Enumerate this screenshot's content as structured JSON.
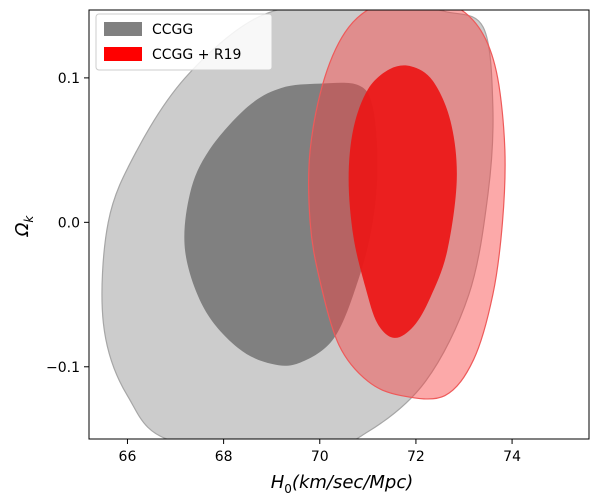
{
  "chart_data": {
    "type": "contour",
    "xlabel_parts": {
      "main": "H",
      "sub": "0",
      "rest": "(km/sec/Mpc)"
    },
    "ylabel_parts": {
      "main": "Ω",
      "sub": "k"
    },
    "xlim": [
      65.2,
      75.6
    ],
    "ylim": [
      -0.15,
      0.147
    ],
    "xticks": [
      66,
      68,
      70,
      72,
      74
    ],
    "xtick_labels": [
      "66",
      "68",
      "70",
      "72",
      "74"
    ],
    "yticks": [
      -0.1,
      0.0,
      0.1
    ],
    "ytick_labels": [
      "−0.1",
      "0.0",
      "0.1"
    ],
    "grid": false,
    "legend_position": "top-left",
    "series": [
      {
        "name": "CCGG",
        "color": "#808080",
        "regions": [
          {
            "level": "outer",
            "color": "#cccccc",
            "points": [
              [
                72.6,
                0.146
              ],
              [
                73.4,
                0.135
              ],
              [
                73.6,
                0.08
              ],
              [
                73.5,
                0.02
              ],
              [
                73.1,
                -0.05
              ],
              [
                72.2,
                -0.11
              ],
              [
                71.0,
                -0.145
              ],
              [
                70.0,
                -0.155
              ],
              [
                67.0,
                -0.152
              ],
              [
                66.0,
                -0.12
              ],
              [
                65.5,
                -0.07
              ],
              [
                65.6,
                0.0
              ],
              [
                66.2,
                0.05
              ],
              [
                67.2,
                0.1
              ],
              [
                68.6,
                0.14
              ],
              [
                70.0,
                0.152
              ],
              [
                71.5,
                0.152
              ]
            ]
          },
          {
            "level": "inner",
            "color": "#808080",
            "points": [
              [
                70.8,
                0.095
              ],
              [
                71.1,
                0.08
              ],
              [
                71.2,
                0.04
              ],
              [
                71.1,
                0.0
              ],
              [
                70.8,
                -0.04
              ],
              [
                70.3,
                -0.08
              ],
              [
                69.6,
                -0.097
              ],
              [
                69.0,
                -0.098
              ],
              [
                68.3,
                -0.087
              ],
              [
                67.6,
                -0.06
              ],
              [
                67.2,
                -0.02
              ],
              [
                67.3,
                0.02
              ],
              [
                67.7,
                0.05
              ],
              [
                68.5,
                0.08
              ],
              [
                69.2,
                0.093
              ],
              [
                70.0,
                0.096
              ]
            ]
          }
        ]
      },
      {
        "name": "CCGG + R19",
        "color": "#ff0000",
        "regions": [
          {
            "level": "outer",
            "color": "rgba(248,64,64,0.45)",
            "points": [
              [
                73.4,
                0.13
              ],
              [
                73.7,
                0.1
              ],
              [
                73.85,
                0.05
              ],
              [
                73.8,
                0.0
              ],
              [
                73.6,
                -0.05
              ],
              [
                73.2,
                -0.095
              ],
              [
                72.6,
                -0.12
              ],
              [
                71.7,
                -0.12
              ],
              [
                71.0,
                -0.11
              ],
              [
                70.4,
                -0.085
              ],
              [
                70.0,
                -0.04
              ],
              [
                69.8,
                0.0
              ],
              [
                69.8,
                0.05
              ],
              [
                70.1,
                0.1
              ],
              [
                70.6,
                0.135
              ],
              [
                71.3,
                0.152
              ],
              [
                72.2,
                0.155
              ],
              [
                72.9,
                0.148
              ]
            ]
          },
          {
            "level": "inner",
            "color": "rgba(236,22,22,0.92)",
            "points": [
              [
                72.85,
                0.03
              ],
              [
                72.72,
                0.07
              ],
              [
                72.35,
                0.098
              ],
              [
                71.9,
                0.108
              ],
              [
                71.45,
                0.106
              ],
              [
                71.0,
                0.092
              ],
              [
                70.7,
                0.065
              ],
              [
                70.6,
                0.03
              ],
              [
                70.7,
                -0.01
              ],
              [
                70.95,
                -0.045
              ],
              [
                71.2,
                -0.07
              ],
              [
                71.55,
                -0.08
              ],
              [
                71.95,
                -0.072
              ],
              [
                72.3,
                -0.052
              ],
              [
                72.65,
                -0.02
              ]
            ]
          }
        ]
      }
    ]
  }
}
